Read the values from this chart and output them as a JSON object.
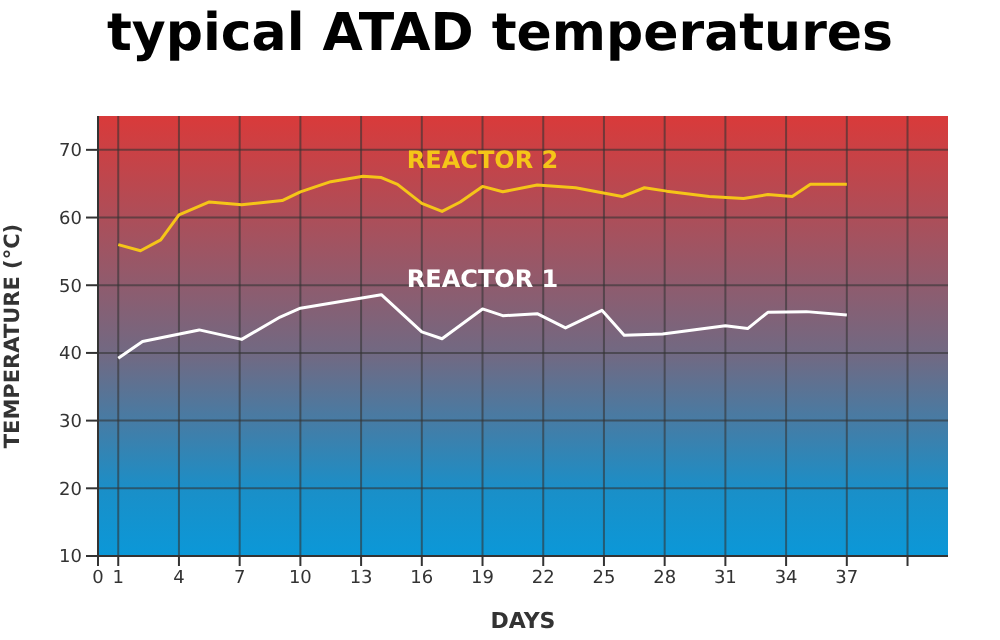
{
  "chart_data": {
    "type": "line",
    "title": "typical ATAD temperatures",
    "xlabel": "DAYS",
    "ylabel": "TEMPERATURE (°C)",
    "xlim": [
      0,
      42
    ],
    "xticks": [
      0,
      1,
      4,
      7,
      10,
      13,
      16,
      19,
      22,
      25,
      28,
      31,
      34,
      37,
      {
        "value": 40,
        "label": null
      }
    ],
    "ylim": [
      10,
      75
    ],
    "yticks": [
      10,
      20,
      30,
      40,
      50,
      60,
      70
    ],
    "grid": true,
    "marker": "none",
    "line_style": "solid",
    "series": [
      {
        "name": "REACTOR 2",
        "color": "#f5c518",
        "x": [
          1,
          2.1,
          3.1,
          4,
          5.5,
          7.1,
          9.1,
          10,
          11.5,
          13.1,
          14,
          14.8,
          16,
          17,
          17.9,
          19,
          20,
          21.7,
          23.6,
          25.9,
          27,
          28.1,
          30.2,
          31.9,
          33.1,
          34.3,
          35.2,
          37
        ],
        "values": [
          56,
          55.1,
          56.7,
          60.4,
          62.3,
          61.9,
          62.5,
          63.8,
          65.3,
          66.1,
          65.9,
          64.9,
          62.1,
          60.9,
          62.3,
          64.6,
          63.8,
          64.8,
          64.4,
          63.1,
          64.4,
          63.9,
          63.1,
          62.8,
          63.4,
          63.1,
          64.9,
          64.9
        ]
      },
      {
        "name": "REACTOR 1",
        "color": "#ffffff",
        "x": [
          1,
          2.2,
          5,
          7.1,
          9,
          10,
          14,
          16,
          17,
          19,
          20,
          21.7,
          23.1,
          24.9,
          26,
          27.9,
          31,
          32.1,
          33.1,
          35,
          37
        ],
        "values": [
          39.2,
          41.7,
          43.4,
          42,
          45.3,
          46.6,
          48.6,
          43.1,
          42.1,
          46.5,
          45.5,
          45.8,
          43.7,
          46.3,
          42.6,
          42.8,
          44,
          43.6,
          46,
          46.1,
          45.6
        ]
      }
    ]
  }
}
